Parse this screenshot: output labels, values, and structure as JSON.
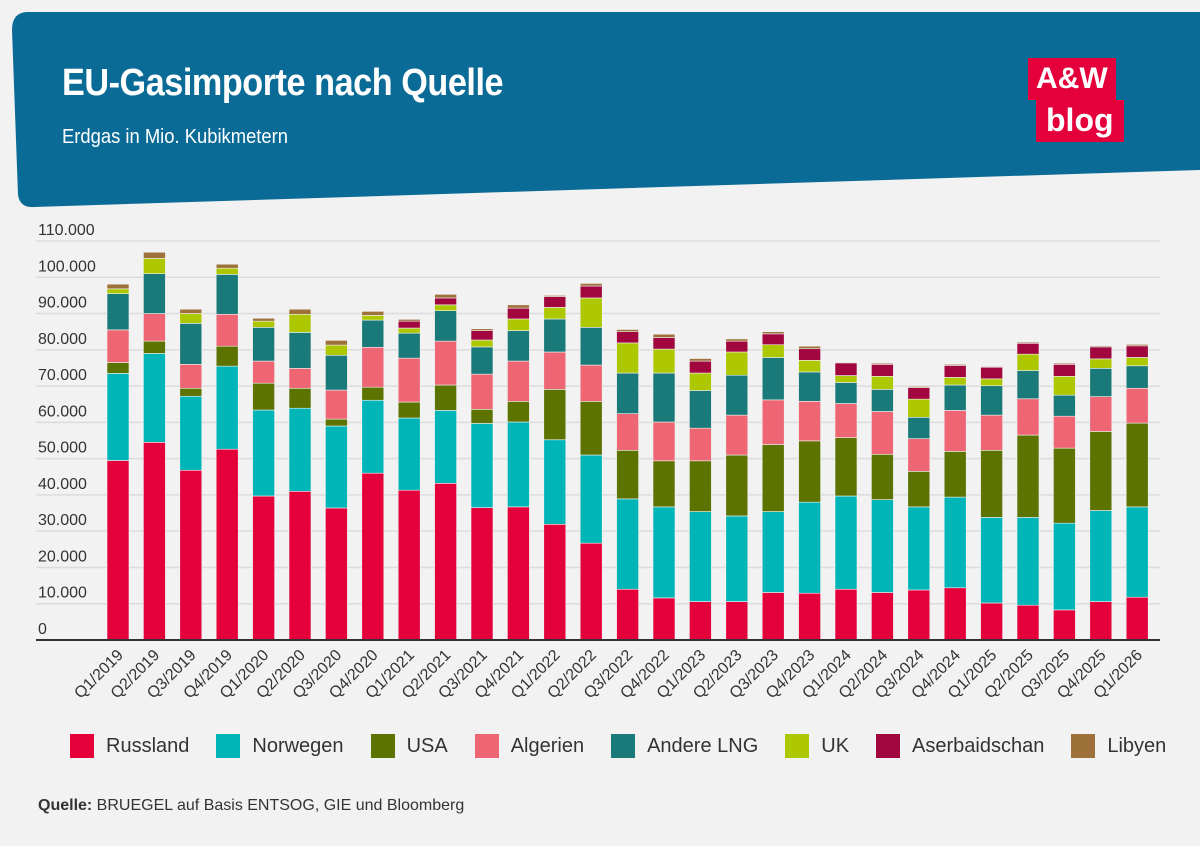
{
  "header": {
    "title": "EU-Gasimporte nach Quelle",
    "subtitle": "Erdgas in Mio. Kubikmetern",
    "logo_top": "A&W",
    "logo_bottom": "blog",
    "background_color": "#0b6b97",
    "logo_color": "#e4003a"
  },
  "source": {
    "label": "Quelle:",
    "text": " BRUEGEL auf Basis ENTSOG, GIE und Bloomberg"
  },
  "chart_data": {
    "type": "bar",
    "stacked": true,
    "title": "EU-Gasimporte nach Quelle",
    "subtitle": "Erdgas in Mio. Kubikmetern",
    "ylim": [
      0,
      110000
    ],
    "yticks": [
      0,
      10000,
      20000,
      30000,
      40000,
      50000,
      60000,
      70000,
      80000,
      90000,
      100000,
      110000
    ],
    "ytick_labels": [
      "0",
      "10.000",
      "20.000",
      "30.000",
      "40.000",
      "50.000",
      "60.000",
      "70.000",
      "80.000",
      "90.000",
      "100.000",
      "110.000"
    ],
    "grid": true,
    "legend_position": "bottom",
    "categories": [
      "Q1/2019",
      "Q2/2019",
      "Q3/2019",
      "Q4/2019",
      "Q1/2020",
      "Q2/2020",
      "Q3/2020",
      "Q4/2020",
      "Q1/2021",
      "Q2/2021",
      "Q3/2021",
      "Q4/2021",
      "Q1/2022",
      "Q2/2022",
      "Q3/2022",
      "Q4/2022",
      "Q1/2023",
      "Q2/2023",
      "Q3/2023",
      "Q4/2023",
      "Q1/2024",
      "Q2/2024",
      "Q3/2024",
      "Q4/2024",
      "Q1/2025",
      "Q2/2025",
      "Q3/2025",
      "Q4/2025",
      "Q1/2026"
    ],
    "series": [
      {
        "name": "Russland",
        "color": "#e4003a",
        "values": [
          49500,
          54500,
          46800,
          52600,
          39700,
          41000,
          36400,
          46000,
          41300,
          43200,
          36500,
          36700,
          31900,
          26700,
          14000,
          11600,
          10600,
          10600,
          13100,
          12900,
          14000,
          13100,
          13800,
          14400,
          10200,
          9600,
          8300,
          10600,
          11800
        ]
      },
      {
        "name": "Norwegen",
        "color": "#00b5b8",
        "values": [
          24000,
          24500,
          20400,
          22900,
          23700,
          22900,
          22600,
          20100,
          19900,
          20100,
          23200,
          23400,
          23300,
          24300,
          24900,
          25100,
          24800,
          23600,
          22300,
          25100,
          25700,
          25600,
          22900,
          25000,
          23600,
          24200,
          23900,
          25100,
          24900
        ]
      },
      {
        "name": "USA",
        "color": "#5c7300",
        "values": [
          3000,
          3400,
          2200,
          5500,
          7400,
          5500,
          1900,
          3600,
          4400,
          7000,
          3900,
          5700,
          13900,
          14800,
          13400,
          12700,
          14000,
          16800,
          18500,
          16900,
          16100,
          12500,
          9800,
          12600,
          18500,
          22700,
          20700,
          21800,
          23100
        ]
      },
      {
        "name": "Algerien",
        "color": "#ee6673",
        "values": [
          9000,
          7600,
          6600,
          8800,
          6100,
          5500,
          8000,
          11000,
          12100,
          12100,
          9700,
          11100,
          10300,
          10000,
          10100,
          10700,
          9000,
          11000,
          12300,
          10900,
          9400,
          11800,
          9000,
          11300,
          9700,
          10000,
          8800,
          9600,
          9600
        ]
      },
      {
        "name": "Andere LNG",
        "color": "#1a7a79",
        "values": [
          10000,
          11000,
          11300,
          11000,
          9300,
          9900,
          9600,
          7500,
          6900,
          8400,
          7500,
          8400,
          9100,
          10400,
          11200,
          13500,
          10400,
          11000,
          11700,
          8100,
          5800,
          6100,
          5900,
          7000,
          8100,
          7800,
          5800,
          7800,
          6200
        ]
      },
      {
        "name": "UK",
        "color": "#adc800",
        "values": [
          1300,
          4200,
          2700,
          1700,
          1700,
          5000,
          2800,
          1300,
          1400,
          1600,
          1900,
          3200,
          3200,
          8100,
          8300,
          6600,
          4800,
          6400,
          3500,
          3200,
          1900,
          3600,
          5000,
          2100,
          1900,
          4500,
          5200,
          2600,
          2300
        ]
      },
      {
        "name": "Aserbaidschan",
        "color": "#a2063f",
        "values": [
          0,
          0,
          0,
          0,
          0,
          0,
          0,
          0,
          1900,
          1900,
          2600,
          3000,
          3000,
          3300,
          3100,
          3200,
          3300,
          3000,
          3000,
          3200,
          3500,
          3300,
          3200,
          3300,
          3200,
          3000,
          3300,
          3300,
          3200
        ]
      },
      {
        "name": "Libyen",
        "color": "#9e713a",
        "values": [
          1300,
          1700,
          1200,
          1100,
          800,
          1400,
          1300,
          1100,
          500,
          1000,
          500,
          900,
          300,
          700,
          600,
          900,
          700,
          600,
          600,
          700,
          200,
          300,
          300,
          300,
          200,
          300,
          300,
          300,
          400
        ]
      }
    ]
  }
}
